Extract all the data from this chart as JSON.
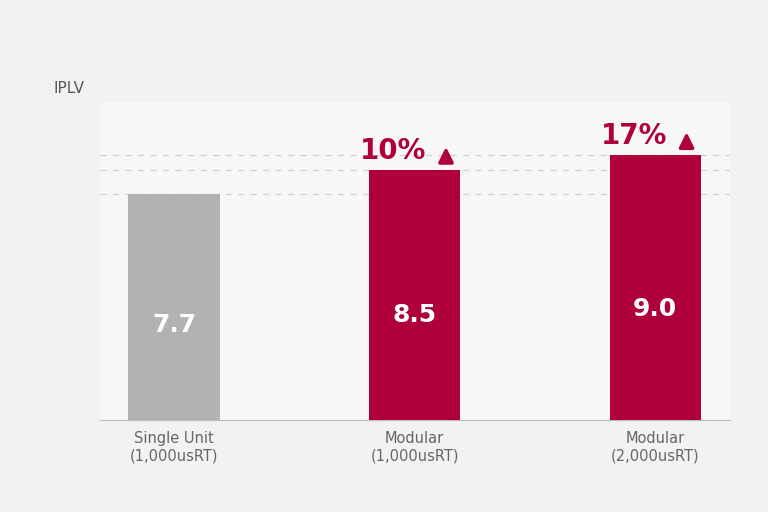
{
  "categories": [
    "Single Unit\n(1,000usRT)",
    "Modular\n(1,000usRT)",
    "Modular\n(2,000usRT)"
  ],
  "values": [
    7.7,
    8.5,
    9.0
  ],
  "bar_colors": [
    "#b2b2b2",
    "#b0003a",
    "#b0003a"
  ],
  "bar_labels": [
    "7.7",
    "8.5",
    "9.0"
  ],
  "bar_label_colors": [
    "#ffffff",
    "#ffffff",
    "#ffffff"
  ],
  "percentage_labels": [
    "",
    "10%",
    "17%"
  ],
  "percentage_color": "#b0003a",
  "ylabel": "IPLV",
  "ylim": [
    0,
    10.8
  ],
  "background_color": "#f2f2f2",
  "plot_bg_color": "#f7f7f7",
  "grid_color": "#d0d0d0",
  "bar_width": 0.38,
  "label_fontsize": 18,
  "pct_fontsize": 20,
  "tick_fontsize": 10.5,
  "ylabel_fontsize": 11,
  "grid_values": [
    7.7,
    8.5,
    9.0
  ]
}
